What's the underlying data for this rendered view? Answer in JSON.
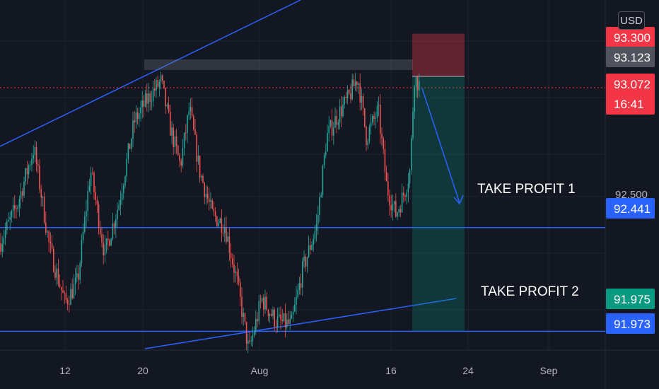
{
  "currency_button": "USD",
  "colors": {
    "background": "#131722",
    "grid": "#1e222d",
    "up_candle": "#26a69a",
    "down_candle": "#ef5350",
    "trendline": "#2962ff",
    "stop_zone": "#f23645",
    "target_zone": "#089981",
    "axis_text": "#b2b5be"
  },
  "chart_data": {
    "type": "candlestick",
    "symbol_currency": "USD",
    "x_ticks": [
      "12",
      "20",
      "Aug",
      "16",
      "24",
      "Sep"
    ],
    "y_ticks": [
      "92.500"
    ],
    "price_labels": [
      {
        "text": "93.300",
        "value": 93.3,
        "bg": "#f23645",
        "fg": "#ffffff",
        "role": "stop"
      },
      {
        "text": "93.123",
        "value": 93.123,
        "bg": "#50535e",
        "fg": "#ffffff",
        "role": "entry"
      },
      {
        "text": "93.072",
        "value": 93.072,
        "bg": "#f23645",
        "fg": "#ffffff",
        "role": "last-price",
        "countdown": "16:41"
      },
      {
        "text": "92.441",
        "value": 92.441,
        "bg": "#2962ff",
        "fg": "#ffffff",
        "role": "horizontal-line"
      },
      {
        "text": "91.975",
        "value": 91.975,
        "bg": "#089981",
        "fg": "#ffffff",
        "role": "target"
      },
      {
        "text": "91.973",
        "value": 91.973,
        "bg": "#2962ff",
        "fg": "#ffffff",
        "role": "horizontal-line"
      }
    ],
    "annotations": [
      {
        "text": "TAKE PROFIT 1",
        "near_value": 92.441
      },
      {
        "text": "TAKE PROFIT 2",
        "near_value": 91.973
      }
    ],
    "horizontal_lines": [
      92.441,
      91.973
    ],
    "last_price": 93.072,
    "short_position": {
      "entry": 93.123,
      "stop": 93.3,
      "target": 91.975
    },
    "grid": true
  }
}
